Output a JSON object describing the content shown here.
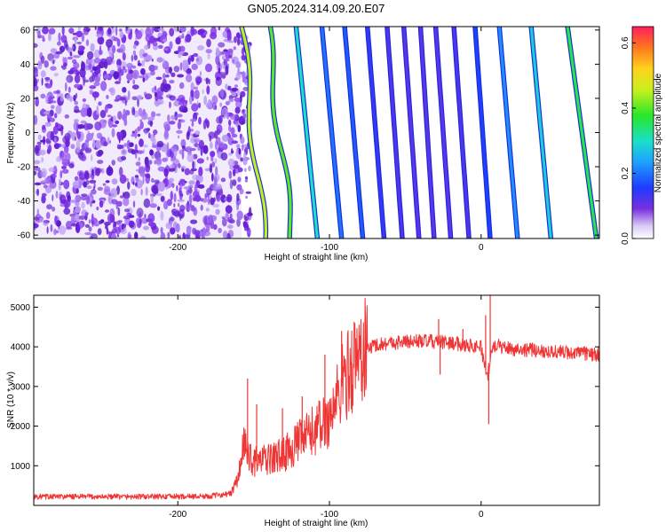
{
  "title": "GN05.2024.314.09.20.E07",
  "colors": {
    "snr_line": "#f03535",
    "speckle": "#7a2fe0",
    "axis": "#000000"
  },
  "colorbar": {
    "label": "Normalized spectral amplitude",
    "ticks": [
      "0.0",
      "0.2",
      "0.4",
      "0.6"
    ],
    "tick_values": [
      0.0,
      0.2,
      0.4,
      0.6
    ],
    "range": [
      0.0,
      0.65
    ]
  },
  "chart_data": [
    {
      "type": "heatmap",
      "xlabel": "Height of straight line (km)",
      "ylabel": "Frequency (Hz)",
      "xlim": [
        -295,
        78
      ],
      "ylim": [
        -62,
        62
      ],
      "x_ticks": [
        -200,
        -100,
        0
      ],
      "x_tick_labels": [
        "-200",
        "-100",
        "0"
      ],
      "y_ticks": [
        -60,
        -40,
        -20,
        0,
        20,
        40,
        60
      ],
      "y_tick_labels": [
        "-60",
        "-40",
        "-20",
        "0",
        "20",
        "40",
        "60"
      ],
      "noise_region_x": [
        -295,
        -158
      ],
      "tone_lines": [
        {
          "x_at_top": -158,
          "x_at_bottom": -143,
          "amplitude": 0.45
        },
        {
          "x_at_top": -141,
          "x_at_bottom": -125,
          "amplitude": 0.4
        },
        {
          "x_at_top": -122,
          "x_at_bottom": -108,
          "amplitude": 0.3
        },
        {
          "x_at_top": -105,
          "x_at_bottom": -92,
          "amplitude": 0.2
        },
        {
          "x_at_top": -90,
          "x_at_bottom": -78,
          "amplitude": 0.18
        },
        {
          "x_at_top": -75,
          "x_at_bottom": -64,
          "amplitude": 0.14
        },
        {
          "x_at_top": -62,
          "x_at_bottom": -52,
          "amplitude": 0.12
        },
        {
          "x_at_top": -51,
          "x_at_bottom": -41,
          "amplitude": 0.11
        },
        {
          "x_at_top": -40,
          "x_at_bottom": -31,
          "amplitude": 0.11
        },
        {
          "x_at_top": -30,
          "x_at_bottom": -20,
          "amplitude": 0.11
        },
        {
          "x_at_top": -18,
          "x_at_bottom": -8,
          "amplitude": 0.12
        },
        {
          "x_at_top": -4,
          "x_at_bottom": 6,
          "amplitude": 0.16
        },
        {
          "x_at_top": 12,
          "x_at_bottom": 24,
          "amplitude": 0.22
        },
        {
          "x_at_top": 33,
          "x_at_bottom": 46,
          "amplitude": 0.28
        },
        {
          "x_at_top": 57,
          "x_at_bottom": 76,
          "amplitude": 0.36
        }
      ]
    },
    {
      "type": "line",
      "xlabel": "Height of straight line (km)",
      "ylabel": "SNR (10 * v/v)",
      "xlim": [
        -295,
        78
      ],
      "ylim": [
        0,
        5300
      ],
      "x_ticks": [
        -200,
        -100,
        0
      ],
      "x_tick_labels": [
        "-200",
        "-100",
        "0"
      ],
      "y_ticks": [
        1000,
        2000,
        3000,
        4000,
        5000
      ],
      "y_tick_labels": [
        "1000",
        "2000",
        "3000",
        "4000",
        "5000"
      ],
      "series": [
        {
          "x": [
            -295,
            -260,
            -220,
            -180,
            -165,
            -160,
            -157,
            -150,
            -140,
            -130,
            -120,
            -110,
            -100,
            -95,
            -90,
            -85,
            -80,
            -75,
            -70,
            -60,
            -40,
            -20,
            0,
            4,
            8,
            20,
            40,
            60,
            78
          ],
          "y": [
            220,
            220,
            220,
            230,
            300,
            700,
            1500,
            1100,
            1150,
            1300,
            1600,
            1900,
            2200,
            2700,
            3200,
            3500,
            3800,
            3950,
            4050,
            4100,
            4150,
            4100,
            4000,
            3200,
            4050,
            3950,
            3900,
            3850,
            3800
          ]
        }
      ],
      "spikes": [
        {
          "x": -154,
          "y": 3200
        },
        {
          "x": -148,
          "y": 2550
        },
        {
          "x": -131,
          "y": 2450
        },
        {
          "x": -118,
          "y": 2750
        },
        {
          "x": -103,
          "y": 3800
        },
        {
          "x": -92,
          "y": 4400
        },
        {
          "x": -28,
          "y": 4700
        },
        {
          "x": -12,
          "y": 4450
        },
        {
          "x": 3,
          "y": 4800
        },
        {
          "x": 6,
          "y": 5300
        }
      ],
      "dips": [
        {
          "x": -27,
          "y": 3300
        },
        {
          "x": 5,
          "y": 2050
        }
      ]
    }
  ]
}
